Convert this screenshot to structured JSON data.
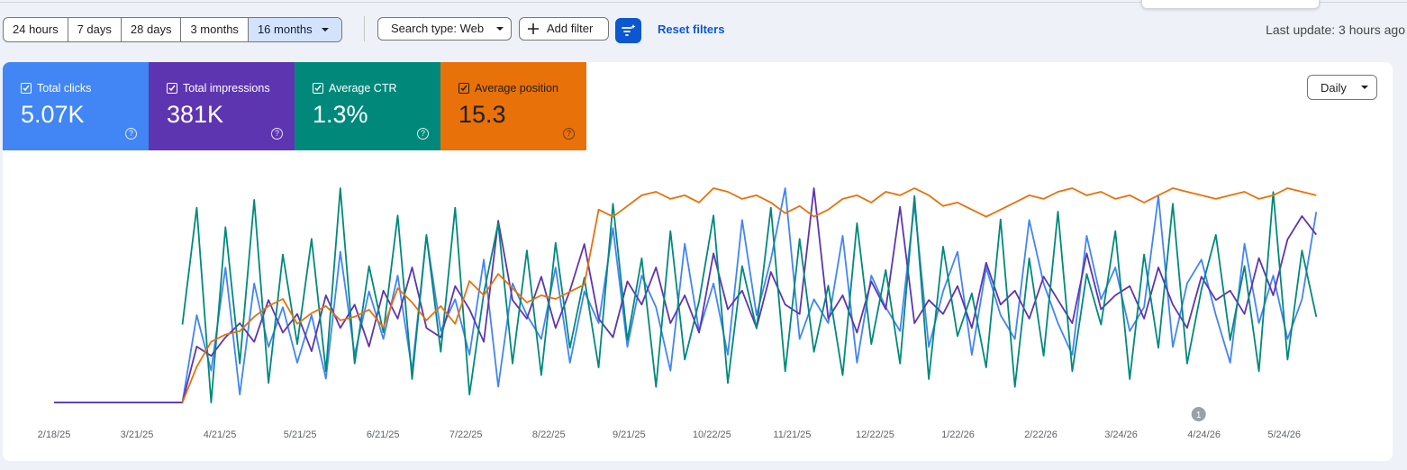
{
  "toolbar": {
    "ranges": [
      "24 hours",
      "7 days",
      "28 days",
      "3 months",
      "16 months"
    ],
    "selected_range": "16 months",
    "search_type": "Search type: Web",
    "add_filter": "Add filter",
    "reset_filters": "Reset filters",
    "last_update": "Last update: 3 hours ago"
  },
  "metrics": [
    {
      "label": "Total clicks",
      "value": "5.07K",
      "color": "#4285f4",
      "checked": true
    },
    {
      "label": "Total impressions",
      "value": "381K",
      "color": "#5e35b1",
      "checked": true
    },
    {
      "label": "Average CTR",
      "value": "1.3%",
      "color": "#00897b",
      "checked": true
    },
    {
      "label": "Average position",
      "value": "15.3",
      "color": "#e8710a",
      "checked": true
    }
  ],
  "granularity": "Daily",
  "annotation_badge": "1",
  "icons": {
    "checkbox": "checkbox-checked-icon",
    "help": "help-circle-icon",
    "plus": "plus-icon",
    "filter": "filter-sparkle-icon",
    "dropdown": "caret-down-icon"
  },
  "chart_data": {
    "type": "line",
    "x_tick_labels": [
      "2/18/25",
      "3/21/25",
      "4/21/25",
      "5/21/25",
      "6/21/25",
      "7/22/25",
      "8/22/25",
      "9/21/25",
      "10/22/25",
      "11/21/25",
      "12/22/25",
      "1/22/26",
      "2/22/26",
      "3/24/26",
      "4/24/26",
      "5/24/26"
    ],
    "x_range": [
      "2025-02-18",
      "2026-06-15"
    ],
    "data_start": "2025-04-07",
    "annotation_date": "2026-04-22",
    "grid": false,
    "independent_axes": true,
    "series": [
      {
        "name": "Total clicks",
        "color": "#4285f4",
        "pre_period_value": 0,
        "values": [
          3,
          14,
          7,
          20,
          4,
          18,
          10,
          15,
          8,
          14,
          6,
          22,
          9,
          17,
          11,
          19,
          7,
          24,
          12,
          16,
          9,
          21,
          5,
          18,
          14,
          11,
          20,
          8,
          17,
          13,
          25,
          10,
          19,
          15,
          7,
          23,
          12,
          18,
          9,
          26,
          14,
          21,
          30,
          11,
          16,
          13,
          24,
          8,
          19,
          15,
          12,
          28,
          10,
          17,
          22,
          9,
          20,
          14,
          11,
          26,
          18,
          13,
          9,
          24,
          16,
          20,
          12,
          15,
          29,
          10,
          18,
          21,
          14,
          8,
          23,
          13,
          19,
          11,
          16,
          27
        ]
      },
      {
        "name": "Total impressions",
        "color": "#5e35b1",
        "pre_period_value": 0,
        "values": [
          6,
          18,
          16,
          20,
          23,
          19,
          28,
          21,
          25,
          17,
          29,
          22,
          27,
          18,
          30,
          24,
          35,
          22,
          20,
          31,
          26,
          19,
          45,
          28,
          24,
          33,
          22,
          30,
          40,
          24,
          20,
          32,
          27,
          35,
          23,
          29,
          21,
          38,
          26,
          30,
          22,
          34,
          27,
          25,
          52,
          24,
          29,
          21,
          32,
          26,
          48,
          23,
          28,
          25,
          31,
          22,
          36,
          27,
          30,
          24,
          33,
          28,
          23,
          38,
          26,
          29,
          31,
          24,
          35,
          27,
          22,
          33,
          28,
          30,
          25,
          37,
          29,
          41,
          46,
          42
        ]
      },
      {
        "name": "Average CTR",
        "color": "#00897b",
        "pre_period_value": null,
        "values": [
          40,
          70,
          20,
          65,
          30,
          72,
          25,
          58,
          35,
          62,
          28,
          75,
          30,
          55,
          38,
          68,
          26,
          63,
          33,
          70,
          22,
          48,
          66,
          30,
          59,
          27,
          61,
          34,
          52,
          29,
          71,
          36,
          57,
          24,
          64,
          31,
          46,
          68,
          25,
          55,
          39,
          70,
          28,
          62,
          33,
          50,
          27,
          66,
          35,
          54,
          30,
          73,
          26,
          60,
          37,
          48,
          29,
          67,
          24,
          57,
          32,
          69,
          28,
          53,
          40,
          64,
          26,
          58,
          34,
          71,
          30,
          49,
          63,
          36,
          55,
          28,
          74,
          31,
          59,
          42
        ]
      },
      {
        "name": "Average position",
        "color": "#e8710a",
        "pre_period_value": null,
        "values": [
          28,
          38,
          45,
          47,
          48,
          52,
          55,
          57,
          50,
          53,
          55,
          51,
          52,
          54,
          49,
          60,
          56,
          51,
          55,
          50,
          62,
          58,
          64,
          60,
          56,
          58,
          57,
          59,
          61,
          82,
          80,
          83,
          86,
          87,
          85,
          86,
          84,
          88,
          87,
          85,
          86,
          84,
          81,
          83,
          80,
          82,
          85,
          86,
          84,
          87,
          86,
          88,
          86,
          83,
          84,
          82,
          80,
          82,
          84,
          86,
          85,
          87,
          88,
          86,
          87,
          85,
          86,
          84,
          86,
          88,
          87,
          86,
          85,
          86,
          87,
          85,
          86,
          88,
          87,
          86
        ]
      }
    ]
  }
}
